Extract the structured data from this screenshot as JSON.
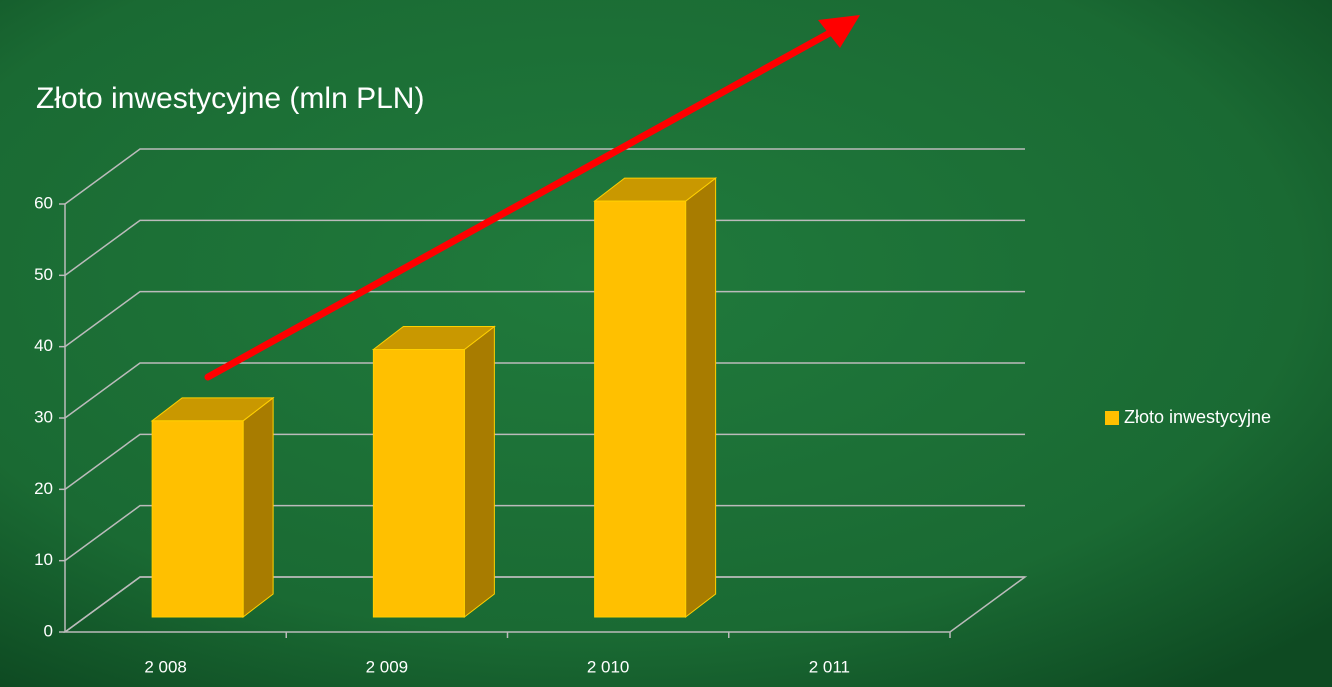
{
  "chart_data": {
    "type": "bar3d",
    "title": "Złoto inwestycyjne (mln PLN)",
    "categories": [
      "2 008",
      "2 009",
      "2 010",
      "2 011"
    ],
    "series": [
      {
        "name": "Złoto inwestycyjne",
        "color": "#ffc000",
        "values": [
          27.5,
          37.5,
          58.3,
          null
        ]
      }
    ],
    "ylim": [
      0,
      60
    ],
    "yticks": [
      0,
      10,
      20,
      30,
      40,
      50,
      60
    ],
    "grid": true,
    "legend": "right"
  }
}
